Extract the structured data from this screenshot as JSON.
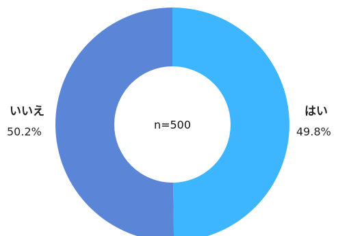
{
  "chart_data": {
    "type": "pie",
    "subtype": "donut",
    "center_label": "n=500",
    "start": "12 o'clock, clockwise",
    "slices": [
      {
        "label": "はい",
        "value": 49.8,
        "value_label": "49.8%",
        "color": "#3DB5FF",
        "label_side": "right"
      },
      {
        "label": "いいえ",
        "value": 50.2,
        "value_label": "50.2%",
        "color": "#5B86D8",
        "label_side": "left"
      }
    ]
  }
}
